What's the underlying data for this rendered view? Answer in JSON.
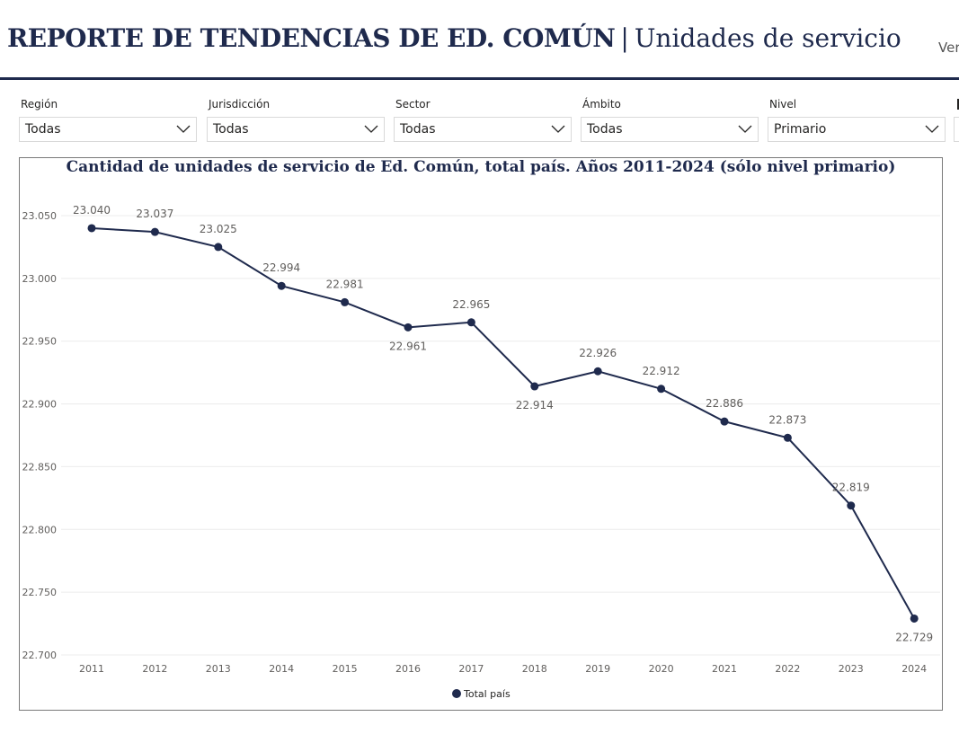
{
  "header": {
    "title_main": "REPORTE DE TENDENCIAS DE ED. COMÚN",
    "separator": "|",
    "title_sub": "Unidades de servicio",
    "link_text": "Ver"
  },
  "slicers": [
    {
      "label": "Región",
      "value": "Todas"
    },
    {
      "label": "Jurisdicción",
      "value": "Todas"
    },
    {
      "label": "Sector",
      "value": "Todas"
    },
    {
      "label": "Ámbito",
      "value": "Todas"
    },
    {
      "label": "Nivel",
      "value": "Primario"
    }
  ],
  "colors": {
    "accent": "#1f2a4d",
    "gridline": "#ececec",
    "label": "#605e5c"
  },
  "chart_data": {
    "type": "line",
    "title": "Cantidad de unidades de servicio de Ed. Común, total país. Años 2011-2024 (sólo nivel primario)",
    "categories": [
      "2011",
      "2012",
      "2013",
      "2014",
      "2015",
      "2016",
      "2017",
      "2018",
      "2019",
      "2020",
      "2021",
      "2022",
      "2023",
      "2024"
    ],
    "series": [
      {
        "name": "Total país",
        "values": [
          23040,
          23037,
          23025,
          22994,
          22981,
          22961,
          22965,
          22914,
          22926,
          22912,
          22886,
          22873,
          22819,
          22729
        ],
        "labels": [
          "23.040",
          "23.037",
          "23.025",
          "22.994",
          "22.981",
          "22.961",
          "22.965",
          "22.914",
          "22.926",
          "22.912",
          "22.886",
          "22.873",
          "22.819",
          "22.729"
        ]
      }
    ],
    "yticks": [
      22700,
      22750,
      22800,
      22850,
      22900,
      22950,
      23000,
      23050
    ],
    "ytick_labels": [
      "22.700",
      "22.750",
      "22.800",
      "22.850",
      "22.900",
      "22.950",
      "23.000",
      "23.050"
    ],
    "ylim": [
      22700,
      23050
    ],
    "label_placement": [
      "above",
      "above",
      "above",
      "above",
      "above",
      "below",
      "above",
      "below",
      "above",
      "above",
      "above",
      "above",
      "above",
      "below"
    ],
    "grid": true,
    "legend": "bottom-center"
  }
}
